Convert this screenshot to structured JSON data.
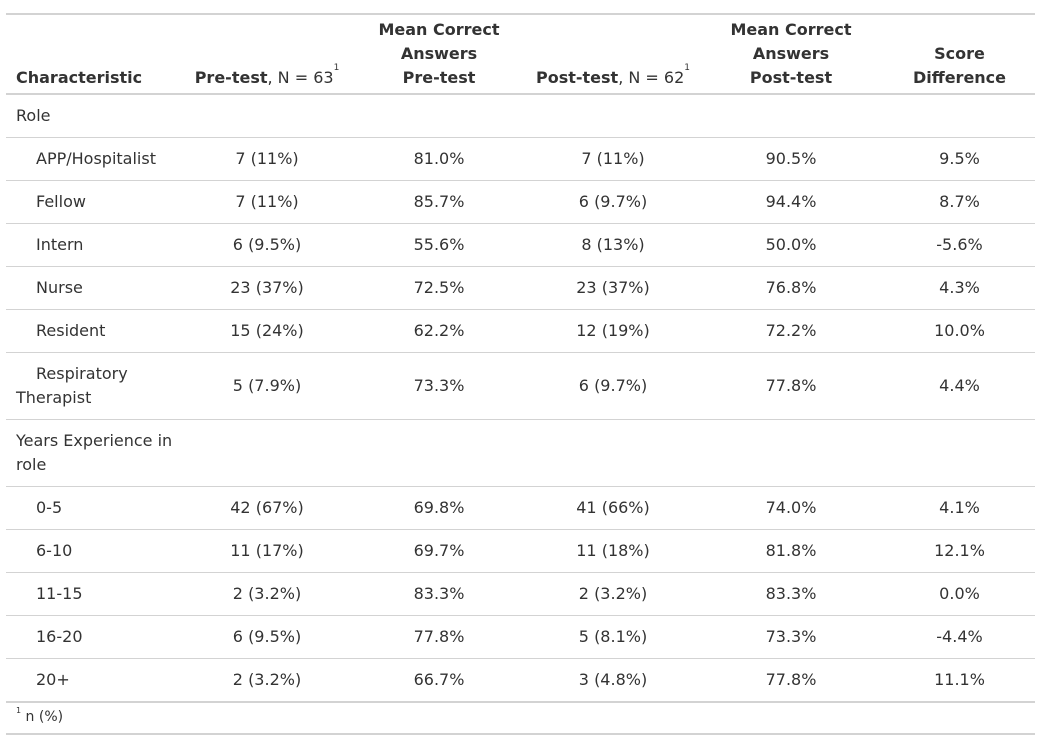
{
  "header": {
    "characteristic": "Characteristic",
    "pre_test_label": "Pre-test",
    "pre_test_n": ", N = 63",
    "mean_pre_line1": "Mean Correct Answers",
    "mean_pre_line2": "Pre-test",
    "post_test_label": "Post-test",
    "post_test_n": ", N = 62",
    "mean_post_line1": "Mean Correct Answers",
    "mean_post_line2": "Post-test",
    "score_line1": "Score",
    "score_line2": "Difference",
    "footnote_marker": "1"
  },
  "groups": [
    {
      "label": "Role",
      "rows": [
        {
          "label": "APP/Hospitalist",
          "pre": "7 (11%)",
          "mean_pre": "81.0%",
          "post": "7 (11%)",
          "mean_post": "90.5%",
          "diff": "9.5%"
        },
        {
          "label": "Fellow",
          "pre": "7 (11%)",
          "mean_pre": "85.7%",
          "post": "6 (9.7%)",
          "mean_post": "94.4%",
          "diff": "8.7%"
        },
        {
          "label": "Intern",
          "pre": "6 (9.5%)",
          "mean_pre": "55.6%",
          "post": "8 (13%)",
          "mean_post": "50.0%",
          "diff": "-5.6%"
        },
        {
          "label": "Nurse",
          "pre": "23 (37%)",
          "mean_pre": "72.5%",
          "post": "23 (37%)",
          "mean_post": "76.8%",
          "diff": "4.3%"
        },
        {
          "label": "Resident",
          "pre": "15 (24%)",
          "mean_pre": "62.2%",
          "post": "12 (19%)",
          "mean_post": "72.2%",
          "diff": "10.0%"
        },
        {
          "label": "Respiratory Therapist",
          "pre": "5 (7.9%)",
          "mean_pre": "73.3%",
          "post": "6 (9.7%)",
          "mean_post": "77.8%",
          "diff": "4.4%"
        }
      ]
    },
    {
      "label": "Years Experience in role",
      "rows": [
        {
          "label": "0-5",
          "pre": "42 (67%)",
          "mean_pre": "69.8%",
          "post": "41 (66%)",
          "mean_post": "74.0%",
          "diff": "4.1%"
        },
        {
          "label": "6-10",
          "pre": "11 (17%)",
          "mean_pre": "69.7%",
          "post": "11 (18%)",
          "mean_post": "81.8%",
          "diff": "12.1%"
        },
        {
          "label": "11-15",
          "pre": "2 (3.2%)",
          "mean_pre": "83.3%",
          "post": "2 (3.2%)",
          "mean_post": "83.3%",
          "diff": "0.0%"
        },
        {
          "label": "16-20",
          "pre": "6 (9.5%)",
          "mean_pre": "77.8%",
          "post": "5 (8.1%)",
          "mean_post": "73.3%",
          "diff": "-4.4%"
        },
        {
          "label": "20+",
          "pre": "2 (3.2%)",
          "mean_pre": "66.7%",
          "post": "3 (4.8%)",
          "mean_post": "77.8%",
          "diff": "11.1%"
        }
      ]
    }
  ],
  "footnote": {
    "marker": "1",
    "text": "n (%)"
  }
}
